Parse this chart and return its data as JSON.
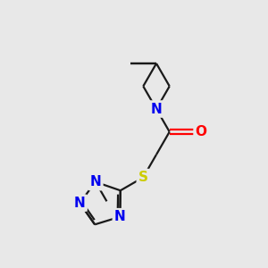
{
  "background_color": "#e8e8e8",
  "atom_color_N": "#0000ee",
  "atom_color_O": "#ff0000",
  "atom_color_S": "#cccc00",
  "bond_color": "#1a1a1a",
  "line_width": 1.6,
  "font_size_atoms": 11,
  "figsize": [
    3.0,
    3.0
  ],
  "dpi": 100,
  "xlim": [
    0,
    10
  ],
  "ylim": [
    0,
    10
  ]
}
